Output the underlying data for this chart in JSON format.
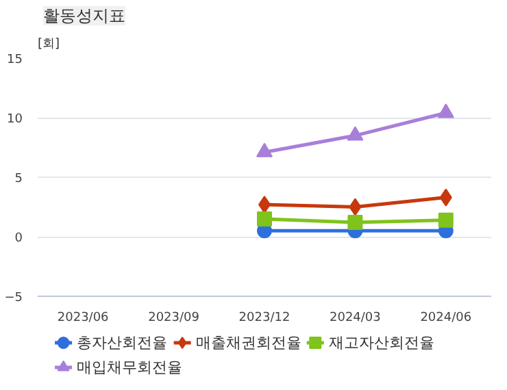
{
  "chart_data": {
    "type": "line",
    "title": "활동성지표",
    "ylabel": "[회]",
    "categories": [
      "2023/06",
      "2023/09",
      "2023/12",
      "2024/03",
      "2024/06"
    ],
    "ylim": [
      -5,
      15
    ],
    "yticks": [
      -5,
      0,
      5,
      10,
      15
    ],
    "grid": "y",
    "legend": "bottom",
    "series": [
      {
        "name": "총자산회전율",
        "color": "#2f6fdc",
        "marker": "circle",
        "values": [
          null,
          null,
          0.5,
          0.5,
          0.5
        ]
      },
      {
        "name": "매출채권회전율",
        "color": "#c8380e",
        "marker": "diamond",
        "values": [
          null,
          null,
          2.7,
          2.5,
          3.3
        ]
      },
      {
        "name": "재고자산회전율",
        "color": "#7fc31c",
        "marker": "square",
        "values": [
          null,
          null,
          1.5,
          1.2,
          1.4
        ]
      },
      {
        "name": "매입채무회전율",
        "color": "#a77fd9",
        "marker": "triangle",
        "values": [
          null,
          null,
          7.1,
          8.5,
          10.4
        ]
      }
    ]
  }
}
